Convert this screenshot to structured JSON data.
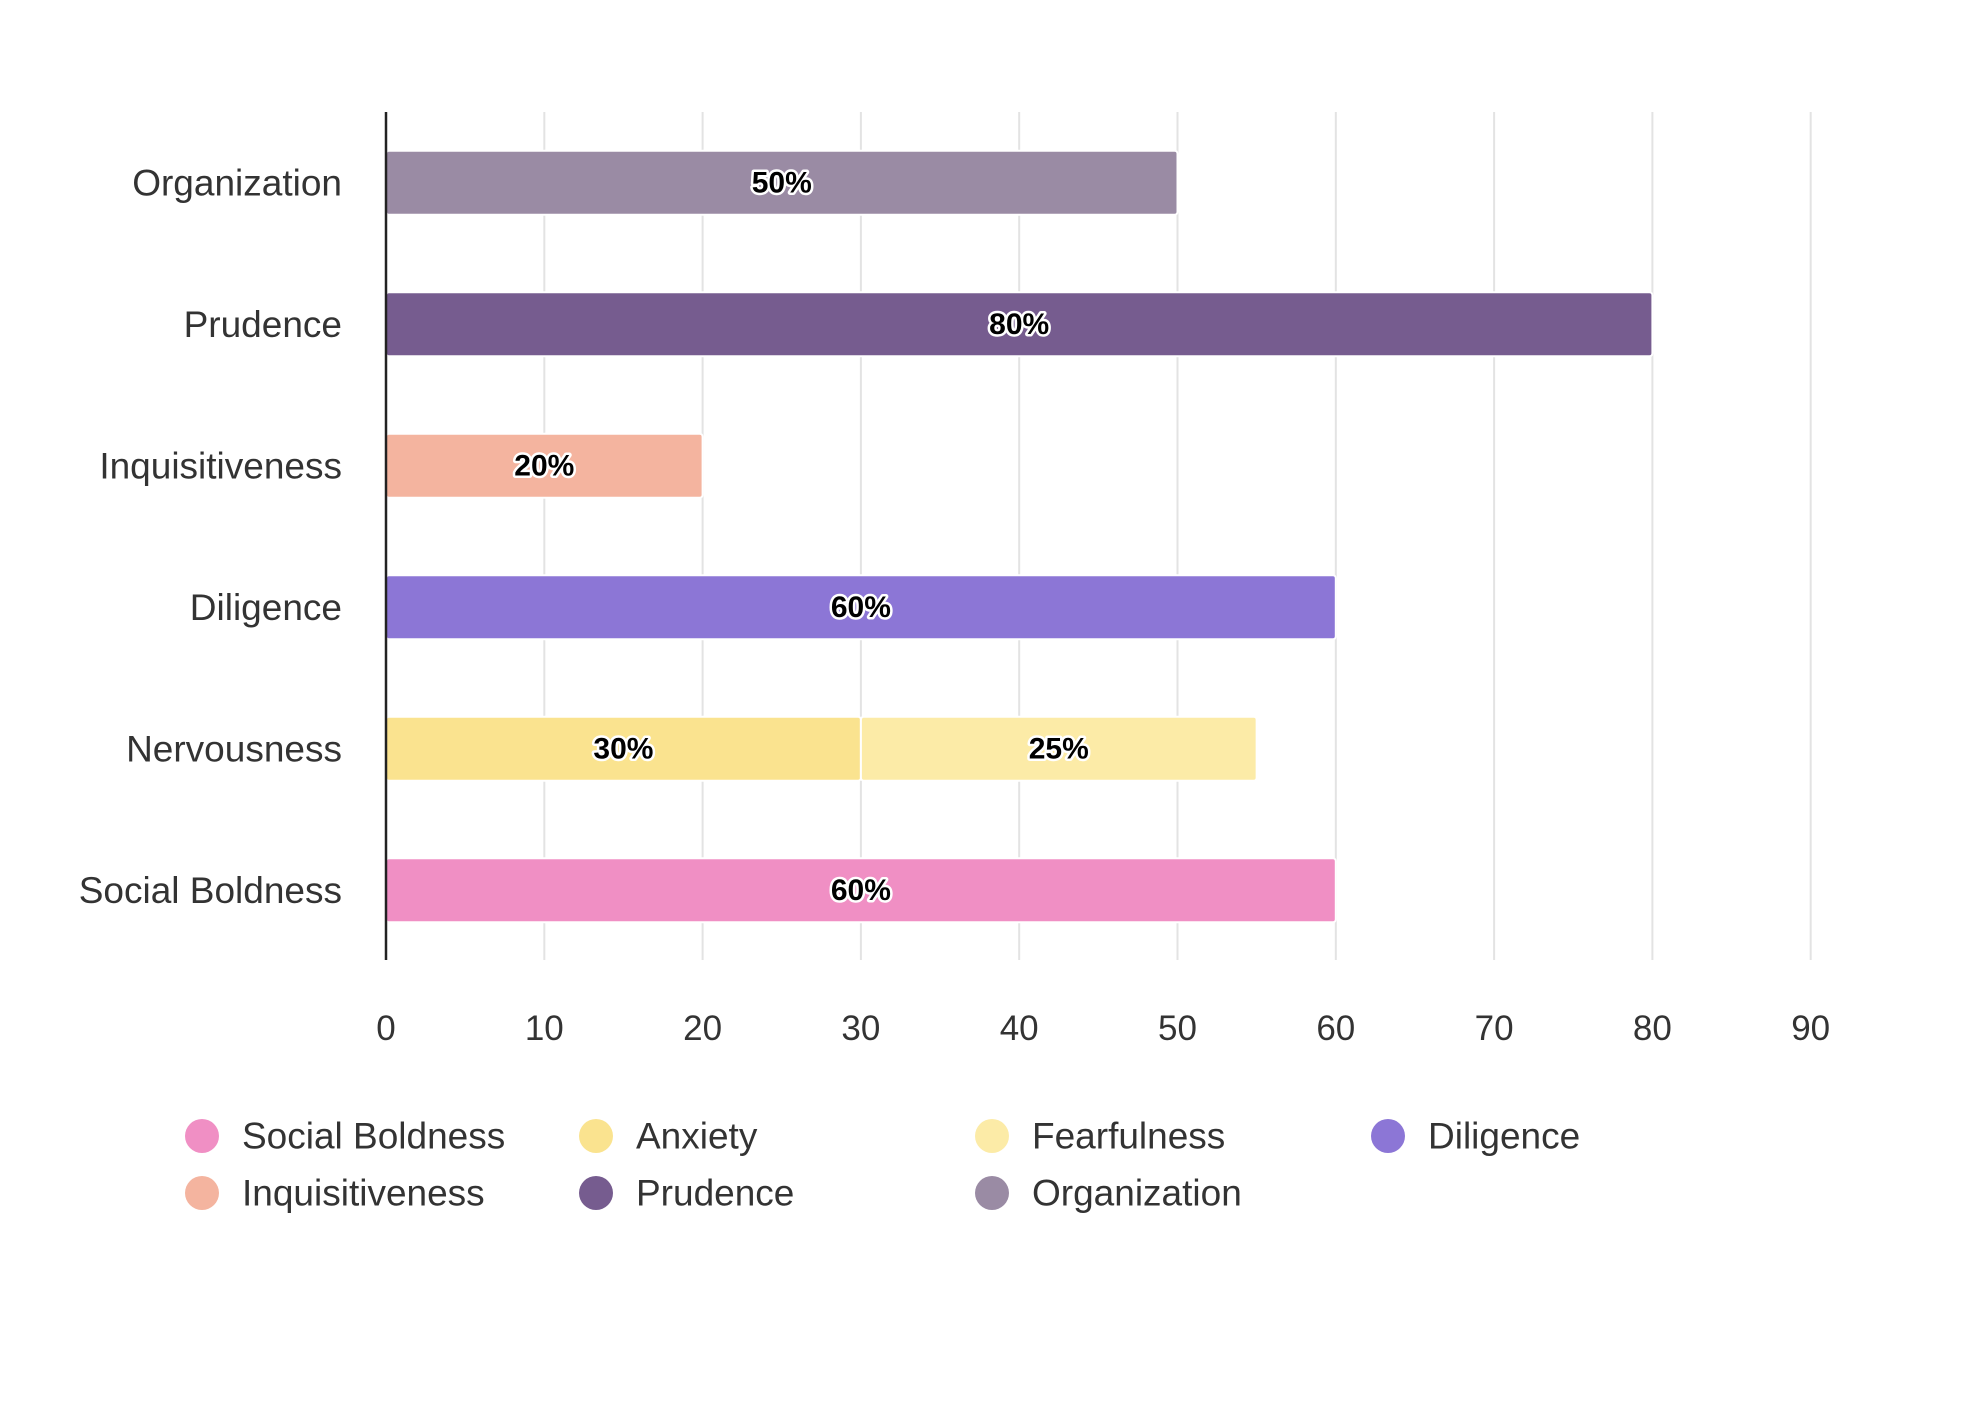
{
  "chart_data": {
    "type": "bar",
    "orientation": "horizontal",
    "stacked": true,
    "title": "",
    "xlabel": "",
    "ylabel": "",
    "xlim": [
      0,
      90
    ],
    "x_ticks": [
      0,
      10,
      20,
      30,
      40,
      50,
      60,
      70,
      80,
      90
    ],
    "grid": true,
    "legend_position": "bottom",
    "categories": [
      "Organization",
      "Prudence",
      "Inquisitiveness",
      "Diligence",
      "Nervousness",
      "Social Boldness"
    ],
    "series": [
      {
        "name": "Social Boldness",
        "color": "#F08FC4",
        "values": [
          null,
          null,
          null,
          null,
          null,
          60
        ],
        "labels": [
          "",
          "",
          "",
          "",
          "",
          "60%"
        ]
      },
      {
        "name": "Anxiety",
        "color": "#FAE38F",
        "values": [
          null,
          null,
          null,
          null,
          30,
          null
        ],
        "labels": [
          "",
          "",
          "",
          "",
          "30%",
          ""
        ]
      },
      {
        "name": "Fearfulness",
        "color": "#FCEBA7",
        "values": [
          null,
          null,
          null,
          null,
          25,
          null
        ],
        "labels": [
          "",
          "",
          "",
          "",
          "25%",
          ""
        ]
      },
      {
        "name": "Diligence",
        "color": "#8C76D6",
        "values": [
          null,
          null,
          null,
          60,
          null,
          null
        ],
        "labels": [
          "",
          "",
          "",
          "60%",
          "",
          ""
        ]
      },
      {
        "name": "Inquisitiveness",
        "color": "#F4B49F",
        "values": [
          null,
          null,
          20,
          null,
          null,
          null
        ],
        "labels": [
          "",
          "",
          "20%",
          "",
          "",
          ""
        ]
      },
      {
        "name": "Prudence",
        "color": "#765C8F",
        "values": [
          null,
          80,
          null,
          null,
          null,
          null
        ],
        "labels": [
          "",
          "80%",
          "",
          "",
          "",
          ""
        ]
      },
      {
        "name": "Organization",
        "color": "#9A8BA4",
        "values": [
          50,
          null,
          null,
          null,
          null,
          null
        ],
        "labels": [
          "50%",
          "",
          "",
          "",
          "",
          ""
        ]
      }
    ]
  }
}
